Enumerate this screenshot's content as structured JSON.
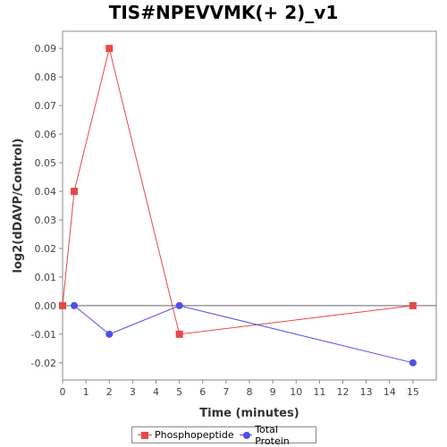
{
  "chart_data": {
    "type": "line",
    "title": "TIS#NPEVVMK(+ 2)_v1",
    "xlabel": "Time (minutes)",
    "ylabel": "log2(dDAVP/Control)",
    "xlim": [
      0,
      16
    ],
    "ylim": [
      -0.026,
      0.096
    ],
    "xticks": [
      0,
      1,
      2,
      3,
      4,
      5,
      6,
      7,
      8,
      9,
      10,
      11,
      12,
      13,
      14,
      15
    ],
    "xtick_labels": [
      "0",
      "1",
      "2",
      "3",
      "4",
      "5",
      "6",
      "7",
      "8",
      "9",
      "10",
      "11",
      "12",
      "13",
      "14",
      "15"
    ],
    "yticks": [
      -0.02,
      -0.01,
      0.0,
      0.01,
      0.02,
      0.03,
      0.04,
      0.05,
      0.06,
      0.07,
      0.08,
      0.09
    ],
    "ytick_labels": [
      "-0.02",
      "-0.01",
      "0.00",
      "0.01",
      "0.02",
      "0.03",
      "0.04",
      "0.05",
      "0.06",
      "0.07",
      "0.08",
      "0.09"
    ],
    "zero_line": 0,
    "grid": false,
    "legend_position": "bottom",
    "series": [
      {
        "name": "Phosphopeptide",
        "color": "#e8474a",
        "marker": "square",
        "x": [
          0,
          0.5,
          2,
          5,
          15
        ],
        "y": [
          0.0,
          0.04,
          0.09,
          -0.01,
          0.0
        ]
      },
      {
        "name": "Total Protein",
        "color": "#4f4fe8",
        "marker": "circle",
        "x": [
          0.5,
          2,
          5,
          15
        ],
        "y": [
          0.0,
          -0.01,
          0.0,
          -0.02
        ]
      }
    ]
  }
}
